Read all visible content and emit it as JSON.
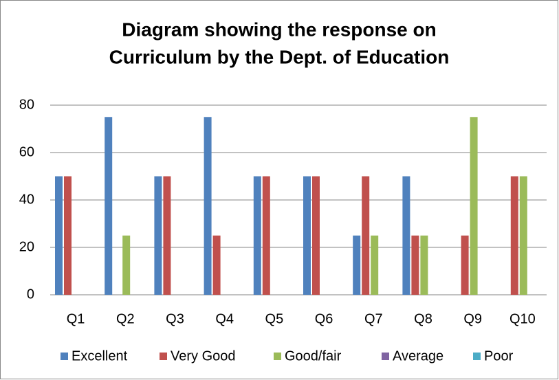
{
  "chart_data": {
    "type": "bar",
    "title": [
      "Diagram showing the response on",
      "Curriculum by the Dept. of Education"
    ],
    "categories": [
      "Q1",
      "Q2",
      "Q3",
      "Q4",
      "Q5",
      "Q6",
      "Q7",
      "Q8",
      "Q9",
      "Q10"
    ],
    "series": [
      {
        "name": "Excellent",
        "color": "#4f81bd",
        "values": [
          50,
          75,
          50,
          75,
          50,
          50,
          25,
          50,
          0,
          0
        ]
      },
      {
        "name": "Very Good",
        "color": "#c0504d",
        "values": [
          50,
          0,
          50,
          25,
          50,
          50,
          50,
          25,
          25,
          50
        ]
      },
      {
        "name": "Good/fair",
        "color": "#9bbb59",
        "values": [
          0,
          25,
          0,
          0,
          0,
          0,
          25,
          25,
          75,
          50
        ]
      },
      {
        "name": "Average",
        "color": "#8064a2",
        "values": [
          0,
          0,
          0,
          0,
          0,
          0,
          0,
          0,
          0,
          0
        ]
      },
      {
        "name": "Poor",
        "color": "#4bacc6",
        "values": [
          0,
          0,
          0,
          0,
          0,
          0,
          0,
          0,
          0,
          0
        ]
      }
    ],
    "ylim": [
      0,
      80
    ],
    "yticks": [
      0,
      20,
      40,
      60,
      80
    ],
    "grid": true,
    "legend": "bottom"
  }
}
